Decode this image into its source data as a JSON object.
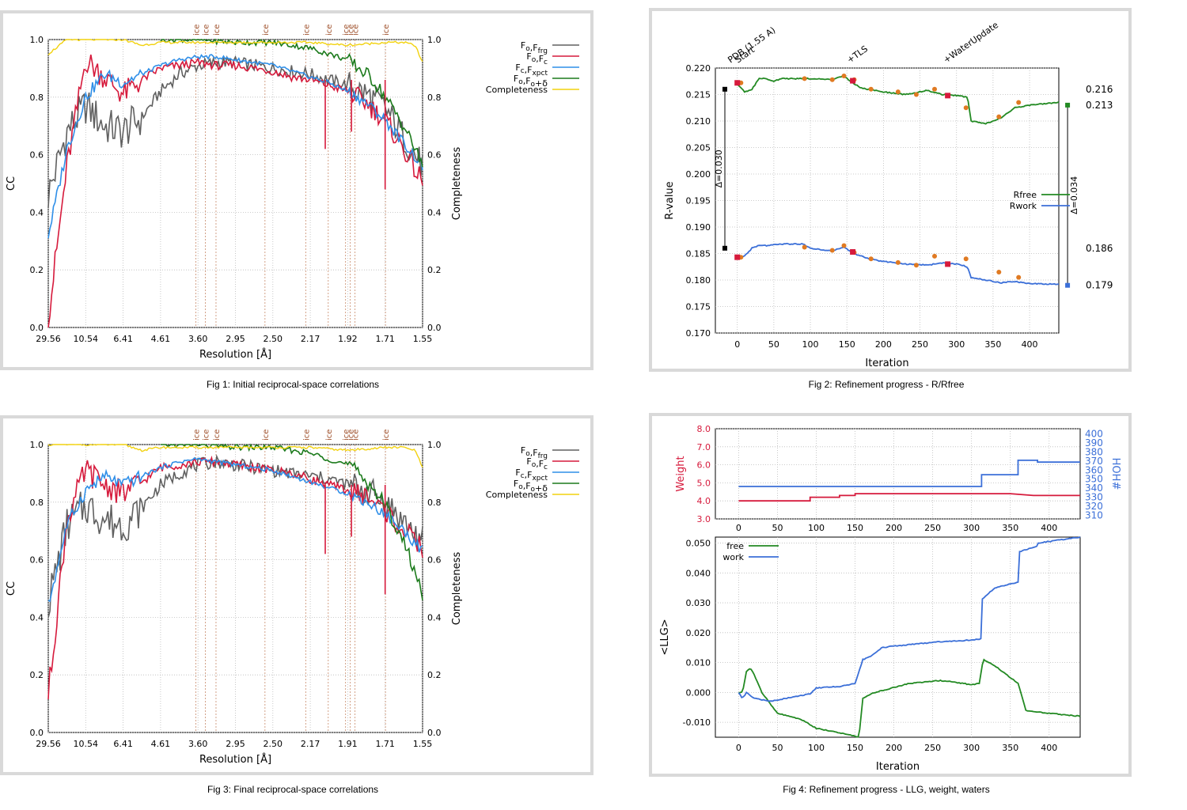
{
  "captions": {
    "fig1": "Fig 1:  Initial reciprocal-space correlations",
    "fig2": "Fig 2:  Refinement progress - R/Rfree",
    "fig3": "Fig 3:  Final reciprocal-space correlations",
    "fig4": "Fig 4:  Refinement progress - LLG, weight, waters"
  },
  "colors": {
    "grey": "#606060",
    "red": "#d61a3c",
    "blue": "#2f8fe8",
    "green": "#1b7a1b",
    "yellow": "#f2d20f",
    "ice": "#c88a6a",
    "rfree": "#238a23",
    "rwork": "#3b6fd8",
    "weight": "#d61a3c",
    "hoh": "#3b6fd8",
    "orange": "#e07a22",
    "marker_red": "#d61a3c"
  },
  "chart_data": [
    {
      "id": "fig1",
      "type": "line",
      "xlabel": "Resolution [Å]",
      "ylabel": "CC",
      "y2label": "Completeness",
      "ylim": [
        0,
        1
      ],
      "yticks": [
        "0.0",
        "0.2",
        "0.4",
        "0.6",
        "0.8",
        "1.0"
      ],
      "xticks": [
        "29.56",
        "10.54",
        "6.41",
        "4.61",
        "3.60",
        "2.95",
        "2.50",
        "2.17",
        "1.92",
        "1.71",
        "1.55"
      ],
      "ice_label": "ice",
      "ice_rings": [
        3.9,
        3.67,
        3.44,
        2.67,
        2.25,
        2.07,
        1.95,
        1.92,
        1.89,
        1.72
      ],
      "legend": [
        {
          "main": "F",
          "sub": "o",
          "main2": ",F",
          "sub2": "frg"
        },
        {
          "main": "F",
          "sub": "o",
          "main2": ",F",
          "sub2": "c"
        },
        {
          "main": "F",
          "sub": "c",
          "main2": ",F",
          "sub2": "xpct"
        },
        {
          "main": "F",
          "sub": "o",
          "main2": ",F",
          "sub2": "o",
          "tail": "+δ"
        },
        {
          "main": "Completeness",
          "sub": "",
          "main2": "",
          "sub2": ""
        }
      ],
      "series": [
        {
          "name": "Fo,Ffrg",
          "x": [
            0,
            0.05,
            0.1,
            0.15,
            0.2,
            0.25,
            0.3,
            0.35,
            0.4,
            0.45,
            0.5,
            0.55,
            0.6,
            0.65,
            0.7,
            0.75,
            0.8,
            0.85,
            0.9,
            0.95,
            1.0
          ],
          "y": [
            0.46,
            0.68,
            0.77,
            0.7,
            0.68,
            0.73,
            0.82,
            0.88,
            0.91,
            0.92,
            0.92,
            0.91,
            0.9,
            0.89,
            0.88,
            0.86,
            0.84,
            0.81,
            0.76,
            0.66,
            0.56
          ]
        },
        {
          "name": "Fo,Fc",
          "x": [
            0,
            0.05,
            0.1,
            0.15,
            0.2,
            0.25,
            0.3,
            0.35,
            0.4,
            0.45,
            0.5,
            0.55,
            0.6,
            0.65,
            0.7,
            0.75,
            0.8,
            0.85,
            0.9,
            0.95,
            1.0
          ],
          "y": [
            0.03,
            0.56,
            0.93,
            0.87,
            0.81,
            0.86,
            0.9,
            0.91,
            0.92,
            0.91,
            0.91,
            0.9,
            0.89,
            0.87,
            0.86,
            0.84,
            0.82,
            0.78,
            0.72,
            0.62,
            0.5
          ]
        },
        {
          "name": "Fc,Fxpct",
          "x": [
            0,
            0.05,
            0.1,
            0.15,
            0.2,
            0.25,
            0.3,
            0.35,
            0.4,
            0.45,
            0.5,
            0.55,
            0.6,
            0.65,
            0.7,
            0.75,
            0.8,
            0.85,
            0.9,
            0.95,
            1.0
          ],
          "y": [
            0.32,
            0.62,
            0.8,
            0.88,
            0.85,
            0.88,
            0.91,
            0.93,
            0.94,
            0.94,
            0.93,
            0.92,
            0.91,
            0.89,
            0.87,
            0.85,
            0.82,
            0.78,
            0.72,
            0.64,
            0.56
          ]
        },
        {
          "name": "Fo,Fo+δ",
          "x": [
            0.3,
            0.4,
            0.5,
            0.6,
            0.65,
            0.7,
            0.75,
            0.8,
            0.83,
            0.86,
            0.89,
            0.92,
            0.95,
            0.98,
            1.0
          ],
          "y": [
            1.0,
            1.0,
            0.99,
            0.99,
            0.98,
            0.97,
            0.95,
            0.93,
            0.9,
            0.87,
            0.82,
            0.76,
            0.7,
            0.62,
            0.56
          ]
        },
        {
          "name": "Completeness",
          "x": [
            0,
            0.05,
            0.1,
            0.2,
            0.25,
            0.3,
            0.4,
            0.5,
            0.6,
            0.7,
            0.8,
            0.9,
            0.95,
            0.98,
            1.0
          ],
          "y": [
            0.95,
            1.0,
            1.0,
            1.0,
            0.98,
            0.99,
            0.99,
            0.99,
            0.99,
            0.99,
            0.98,
            0.99,
            0.99,
            0.98,
            0.92
          ]
        }
      ]
    },
    {
      "id": "fig2",
      "type": "line",
      "xlabel": "Iteration",
      "ylabel": "R-value",
      "ylim": [
        0.17,
        0.22
      ],
      "xlim": [
        -30,
        440
      ],
      "yticks": [
        "0.170",
        "0.175",
        "0.180",
        "0.185",
        "0.190",
        "0.195",
        "0.200",
        "0.205",
        "0.210",
        "0.215",
        "0.220"
      ],
      "xticks": [
        "0",
        "50",
        "100",
        "150",
        "200",
        "250",
        "300",
        "350",
        "400"
      ],
      "annotations": [
        "PDB (1.55 A)",
        "Start",
        "+TLS",
        "+WaterUpdate"
      ],
      "delta_left": "Δ=0.030",
      "delta_right": "Δ=0.034",
      "right_values": [
        "0.216",
        "0.213",
        "0.186",
        "0.179"
      ],
      "legend": [
        "Rfree",
        "Rwork"
      ],
      "series": [
        {
          "name": "Rfree",
          "x": [
            0,
            10,
            20,
            30,
            40,
            50,
            60,
            90,
            100,
            130,
            145,
            160,
            170,
            200,
            230,
            260,
            280,
            300,
            315,
            320,
            340,
            360,
            380,
            400,
            440
          ],
          "y": [
            0.217,
            0.2155,
            0.216,
            0.218,
            0.218,
            0.2175,
            0.218,
            0.218,
            0.218,
            0.2178,
            0.2185,
            0.217,
            0.2162,
            0.2155,
            0.215,
            0.2158,
            0.215,
            0.2148,
            0.2145,
            0.21,
            0.2095,
            0.2105,
            0.2125,
            0.213,
            0.2135
          ]
        },
        {
          "name": "Rwork",
          "x": [
            0,
            10,
            20,
            30,
            40,
            60,
            90,
            100,
            130,
            145,
            160,
            180,
            200,
            230,
            260,
            280,
            300,
            315,
            320,
            340,
            360,
            380,
            400,
            440
          ],
          "y": [
            0.184,
            0.1845,
            0.186,
            0.1865,
            0.1865,
            0.1868,
            0.1868,
            0.186,
            0.1855,
            0.1862,
            0.185,
            0.184,
            0.1835,
            0.183,
            0.1828,
            0.1832,
            0.183,
            0.1825,
            0.1805,
            0.18,
            0.1795,
            0.1797,
            0.1793,
            0.1792
          ]
        }
      ],
      "orange_points": {
        "x": [
          5,
          92,
          130,
          146,
          160,
          183,
          220,
          245,
          270,
          313,
          358,
          385
        ],
        "rfree": [
          0.2172,
          0.218,
          0.2178,
          0.2185,
          0.2178,
          0.216,
          0.2155,
          0.215,
          0.216,
          0.2125,
          0.2108,
          0.2135
        ],
        "rwork": [
          0.1843,
          0.1862,
          0.1856,
          0.1865,
          0.1852,
          0.184,
          0.1833,
          0.1828,
          0.1845,
          0.184,
          0.1815,
          0.1805
        ]
      }
    },
    {
      "id": "fig3",
      "type": "line",
      "xlabel": "Resolution [Å]",
      "ylabel": "CC",
      "y2label": "Completeness",
      "ylim": [
        0,
        1
      ],
      "yticks": [
        "0.0",
        "0.2",
        "0.4",
        "0.6",
        "0.8",
        "1.0"
      ],
      "xticks": [
        "29.56",
        "10.54",
        "6.41",
        "4.61",
        "3.60",
        "2.95",
        "2.50",
        "2.17",
        "1.91",
        "1.71",
        "1.55"
      ],
      "ice_label": "ice",
      "ice_rings": [
        3.9,
        3.67,
        3.44,
        2.67,
        2.25,
        2.07,
        1.95,
        1.92,
        1.89,
        1.72
      ],
      "legend": [
        {
          "main": "F",
          "sub": "o",
          "main2": ",F",
          "sub2": "frg"
        },
        {
          "main": "F",
          "sub": "o",
          "main2": ",F",
          "sub2": "c"
        },
        {
          "main": "F",
          "sub": "c",
          "main2": ",F",
          "sub2": "xpct"
        },
        {
          "main": "F",
          "sub": "o",
          "main2": ",F",
          "sub2": "o",
          "tail": "+δ"
        },
        {
          "main": "Completeness",
          "sub": "",
          "main2": "",
          "sub2": ""
        }
      ],
      "series": [
        {
          "name": "Fo,Ffrg",
          "x": [
            0,
            0.05,
            0.1,
            0.15,
            0.2,
            0.25,
            0.3,
            0.35,
            0.4,
            0.45,
            0.5,
            0.55,
            0.6,
            0.65,
            0.7,
            0.75,
            0.8,
            0.85,
            0.9,
            0.95,
            1.0
          ],
          "y": [
            0.45,
            0.72,
            0.79,
            0.74,
            0.72,
            0.78,
            0.86,
            0.9,
            0.93,
            0.94,
            0.93,
            0.92,
            0.91,
            0.9,
            0.89,
            0.88,
            0.86,
            0.84,
            0.8,
            0.73,
            0.66
          ]
        },
        {
          "name": "Fo,Fc",
          "x": [
            0,
            0.05,
            0.1,
            0.15,
            0.2,
            0.25,
            0.3,
            0.35,
            0.4,
            0.45,
            0.5,
            0.55,
            0.6,
            0.65,
            0.7,
            0.75,
            0.8,
            0.85,
            0.9,
            0.95,
            1.0
          ],
          "y": [
            0.13,
            0.74,
            0.91,
            0.86,
            0.83,
            0.87,
            0.92,
            0.93,
            0.94,
            0.94,
            0.93,
            0.92,
            0.91,
            0.9,
            0.88,
            0.86,
            0.84,
            0.82,
            0.77,
            0.7,
            0.64
          ]
        },
        {
          "name": "Fc,Fxpct",
          "x": [
            0,
            0.05,
            0.1,
            0.15,
            0.2,
            0.25,
            0.3,
            0.35,
            0.4,
            0.45,
            0.5,
            0.55,
            0.6,
            0.65,
            0.7,
            0.75,
            0.8,
            0.85,
            0.9,
            0.95,
            1.0
          ],
          "y": [
            0.44,
            0.72,
            0.84,
            0.89,
            0.86,
            0.89,
            0.92,
            0.94,
            0.95,
            0.94,
            0.93,
            0.92,
            0.91,
            0.89,
            0.87,
            0.85,
            0.83,
            0.8,
            0.76,
            0.7,
            0.63
          ]
        },
        {
          "name": "Fo,Fo+δ",
          "x": [
            0.3,
            0.4,
            0.5,
            0.6,
            0.65,
            0.7,
            0.75,
            0.8,
            0.83,
            0.86,
            0.89,
            0.92,
            0.95,
            0.98,
            1.0
          ],
          "y": [
            1.0,
            1.0,
            0.99,
            0.99,
            0.98,
            0.97,
            0.95,
            0.93,
            0.9,
            0.86,
            0.81,
            0.74,
            0.66,
            0.56,
            0.47
          ]
        },
        {
          "name": "Completeness",
          "x": [
            0,
            0.05,
            0.1,
            0.2,
            0.25,
            0.3,
            0.4,
            0.5,
            0.6,
            0.7,
            0.8,
            0.9,
            0.95,
            0.98,
            1.0
          ],
          "y": [
            1.0,
            1.0,
            1.0,
            1.0,
            0.98,
            0.99,
            0.99,
            0.99,
            0.99,
            0.99,
            0.98,
            0.99,
            0.99,
            0.98,
            0.92
          ]
        }
      ]
    },
    {
      "id": "fig4",
      "type": "line",
      "top": {
        "ylabel": "Weight",
        "y2label": "HOH#",
        "ylim": [
          3.0,
          8.0
        ],
        "y2lim": [
          305,
          405
        ],
        "yticks": [
          "3.0",
          "4.0",
          "5.0",
          "6.0",
          "7.0",
          "8.0"
        ],
        "y2ticks": [
          "310",
          "320",
          "330",
          "340",
          "350",
          "360",
          "370",
          "380",
          "390",
          "400"
        ],
        "series": [
          {
            "name": "Weight",
            "x": [
              0,
              92,
              92,
              130,
              130,
              150,
              150,
              350,
              380,
              440
            ],
            "y": [
              4.0,
              4.0,
              4.2,
              4.2,
              4.3,
              4.3,
              4.4,
              4.4,
              4.3,
              4.3
            ]
          },
          {
            "name": "HOH#",
            "x": [
              0,
              313,
              313,
              360,
              360,
              385,
              385,
              440
            ],
            "y": [
              341,
              341,
              354,
              354,
              370,
              370,
              368,
              368
            ]
          }
        ]
      },
      "bottom": {
        "xlabel": "Iteration",
        "ylabel": "<LLG>",
        "ylim": [
          -0.015,
          0.052
        ],
        "yticks": [
          "-0.010",
          "0.000",
          "0.010",
          "0.020",
          "0.030",
          "0.040",
          "0.050"
        ],
        "legend": [
          "free",
          "work"
        ],
        "series": [
          {
            "name": "free",
            "x": [
              0,
              5,
              10,
              15,
              20,
              30,
              50,
              80,
              100,
              120,
              140,
              155,
              160,
              170,
              190,
              220,
              260,
              290,
              300,
              310,
              315,
              330,
              350,
              360,
              370,
              400,
              440
            ],
            "y": [
              0.0,
              0.0,
              0.007,
              0.008,
              0.006,
              0.0,
              -0.007,
              -0.009,
              -0.012,
              -0.013,
              -0.014,
              -0.015,
              -0.002,
              -0.0005,
              0.001,
              0.003,
              0.004,
              0.003,
              0.0025,
              0.003,
              0.011,
              0.009,
              0.005,
              0.003,
              -0.006,
              -0.007,
              -0.008
            ]
          },
          {
            "name": "work",
            "x": [
              0,
              5,
              10,
              20,
              40,
              60,
              92,
              100,
              130,
              150,
              160,
              170,
              185,
              200,
              220,
              260,
              300,
              313,
              313,
              330,
              360,
              360,
              385,
              385,
              440
            ],
            "y": [
              0.0,
              -0.002,
              0.0,
              -0.002,
              -0.003,
              -0.002,
              -0.0005,
              0.0015,
              0.002,
              0.003,
              0.011,
              0.012,
              0.015,
              0.0155,
              0.016,
              0.017,
              0.0175,
              0.018,
              0.031,
              0.035,
              0.037,
              0.047,
              0.049,
              0.05,
              0.052
            ]
          }
        ]
      },
      "xticks": [
        "0",
        "50",
        "100",
        "150",
        "200",
        "250",
        "300",
        "350",
        "400"
      ]
    }
  ]
}
